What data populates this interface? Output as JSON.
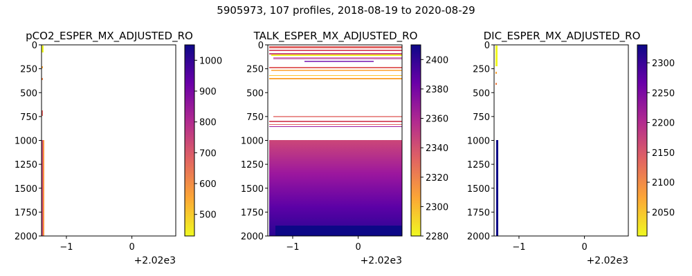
{
  "figure": {
    "suptitle": "5905973, 107 profiles, 2018-08-19 to 2020-08-29"
  },
  "colors": {
    "colormap": "plasma_r",
    "stops": [
      "#f0f921",
      "#fca636",
      "#e16462",
      "#b12a90",
      "#6a00a8",
      "#0d0887"
    ]
  },
  "chart_data": [
    {
      "type": "heatmap",
      "title": "pCO2_ESPER_MX_ADJUSTED_RO",
      "x_ticks": [
        -1,
        0
      ],
      "x_offset_label": "+2.02e3",
      "y_ticks": [
        0,
        250,
        500,
        750,
        1000,
        1250,
        1500,
        1750,
        2000
      ],
      "y_inverted": true,
      "xlim": [
        -1.38,
        0.67
      ],
      "ylim": [
        2000,
        0
      ],
      "colorbar": {
        "ticks": [
          600,
          700,
          800,
          900,
          1000
        ],
        "tick_labels_all": [
          500,
          600,
          700,
          800,
          900,
          1000
        ],
        "range": [
          430,
          1050
        ]
      },
      "observed": "sparse points near x=-1.36 above 1000 dbar; dense column x=-1.36 to -1.35 from 1000 to 2000 dbar, values ~600-800"
    },
    {
      "type": "heatmap",
      "title": "TALK_ESPER_MX_ADJUSTED_RO",
      "x_ticks": [
        -1,
        0
      ],
      "x_offset_label": "+2.02e3",
      "y_ticks": [
        0,
        250,
        500,
        750,
        1000,
        1250,
        1500,
        1750,
        2000
      ],
      "y_inverted": true,
      "xlim": [
        -1.38,
        0.67
      ],
      "ylim": [
        2000,
        0
      ],
      "colorbar": {
        "ticks": [
          2280,
          2300,
          2320,
          2340,
          2360,
          2380,
          2400
        ],
        "range": [
          2280,
          2410
        ]
      },
      "observed": "sparse horizontal streaks 0-850 dbar; dense field 1000-2000 dbar grading from ~2345 at 1000 to ~2400 at 2000"
    },
    {
      "type": "heatmap",
      "title": "DIC_ESPER_MX_ADJUSTED_RO",
      "x_ticks": [
        -1,
        0
      ],
      "x_offset_label": "+2.02e3",
      "y_ticks": [
        0,
        250,
        500,
        750,
        1000,
        1250,
        1500,
        1750,
        2000
      ],
      "y_inverted": true,
      "xlim": [
        -1.38,
        0.67
      ],
      "ylim": [
        2000,
        0
      ],
      "colorbar": {
        "ticks": [
          2050,
          2100,
          2150,
          2200,
          2250,
          2300
        ],
        "range": [
          2010,
          2330
        ]
      },
      "observed": "sparse points near x=-1.36 above 1000 dbar; dense column x=-1.36 to -1.35 from 1000 to 2000 dbar, values ~2320"
    }
  ]
}
